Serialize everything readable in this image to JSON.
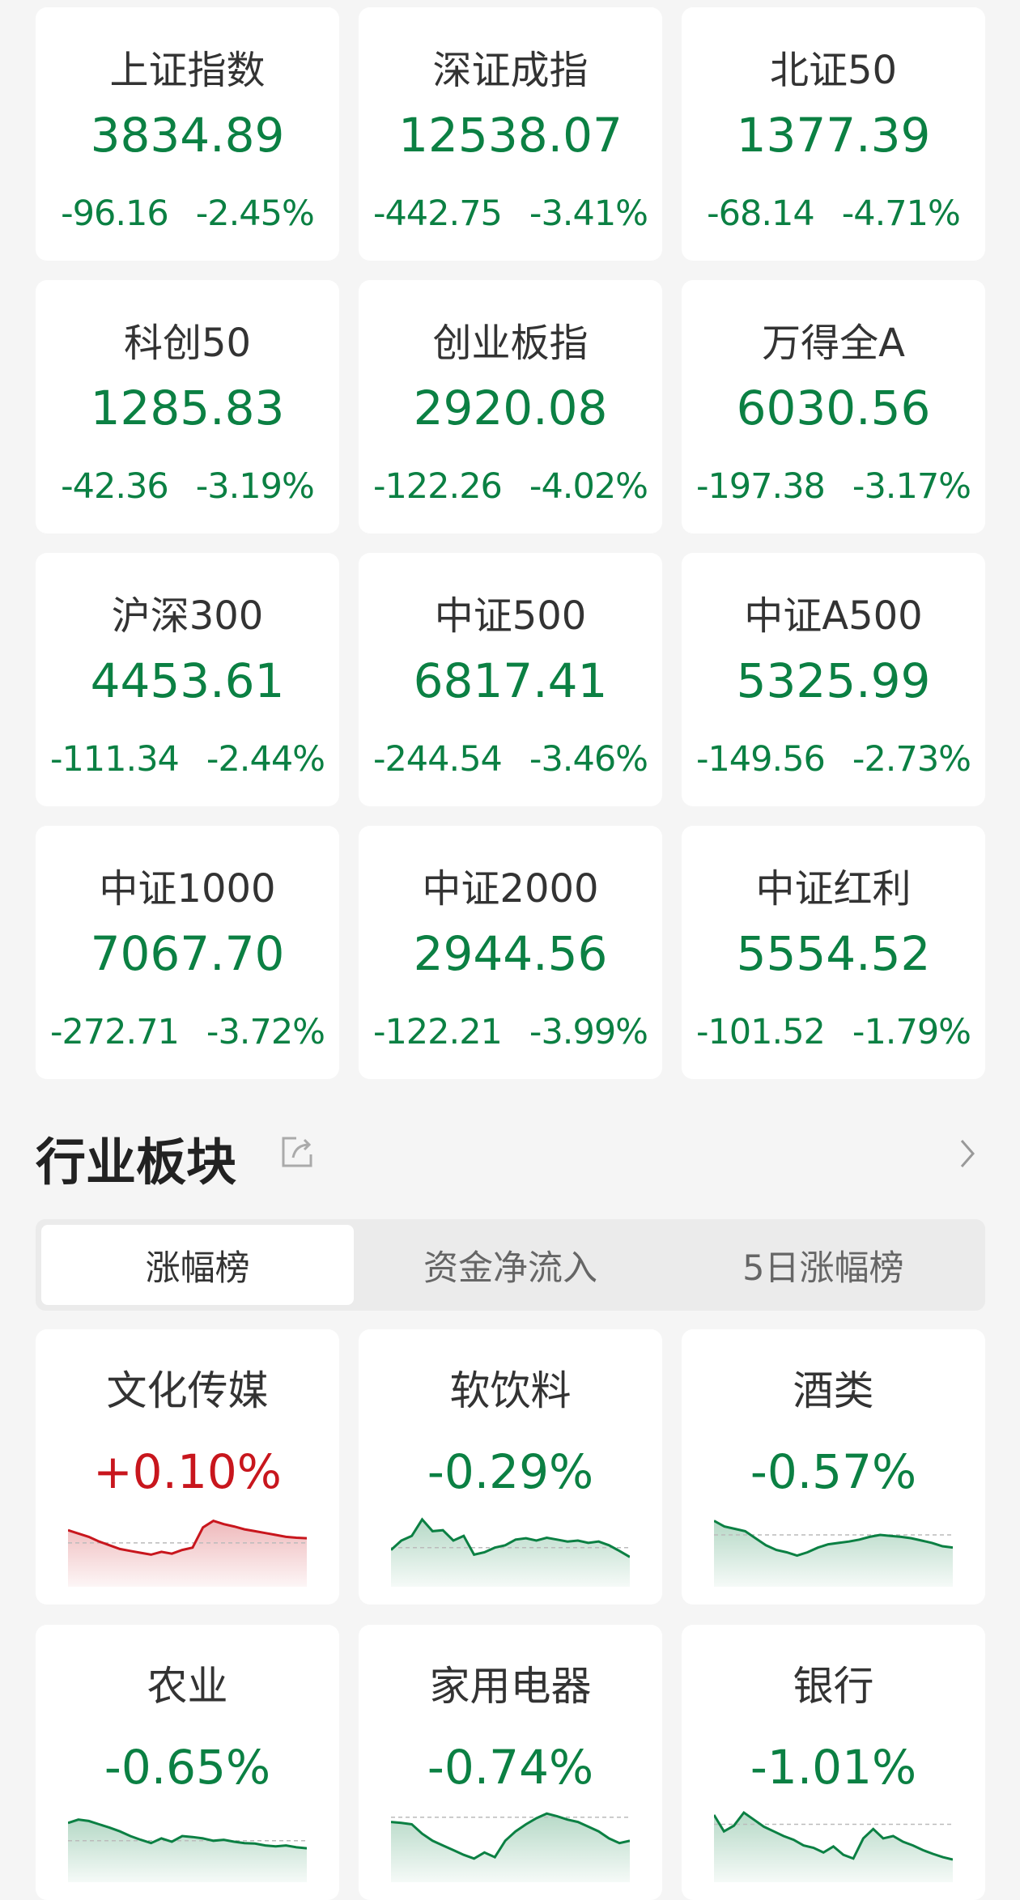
{
  "indices": [
    {
      "name": "上证指数",
      "value": "3834.89",
      "change": "-96.16",
      "pct": "-2.45%"
    },
    {
      "name": "深证成指",
      "value": "12538.07",
      "change": "-442.75",
      "pct": "-3.41%"
    },
    {
      "name": "北证50",
      "value": "1377.39",
      "change": "-68.14",
      "pct": "-4.71%"
    },
    {
      "name": "科创50",
      "value": "1285.83",
      "change": "-42.36",
      "pct": "-3.19%"
    },
    {
      "name": "创业板指",
      "value": "2920.08",
      "change": "-122.26",
      "pct": "-4.02%"
    },
    {
      "name": "万得全A",
      "value": "6030.56",
      "change": "-197.38",
      "pct": "-3.17%"
    },
    {
      "name": "沪深300",
      "value": "4453.61",
      "change": "-111.34",
      "pct": "-2.44%"
    },
    {
      "name": "中证500",
      "value": "6817.41",
      "change": "-244.54",
      "pct": "-3.46%"
    },
    {
      "name": "中证A500",
      "value": "5325.99",
      "change": "-149.56",
      "pct": "-2.73%"
    },
    {
      "name": "中证1000",
      "value": "7067.70",
      "change": "-272.71",
      "pct": "-3.72%"
    },
    {
      "name": "中证2000",
      "value": "2944.56",
      "change": "-122.21",
      "pct": "-3.99%"
    },
    {
      "name": "中证红利",
      "value": "5554.52",
      "change": "-101.52",
      "pct": "-1.79%"
    }
  ],
  "section": {
    "title": "行业板块",
    "share_icon": "share-icon",
    "more_icon": "chevron-right-icon",
    "tabs": [
      {
        "label": "涨幅榜",
        "active": true
      },
      {
        "label": "资金净流入",
        "active": false
      },
      {
        "label": "5日涨幅榜",
        "active": false
      }
    ]
  },
  "colors": {
    "down": "#0b8043",
    "up": "#c8161d"
  },
  "sectors": [
    {
      "name": "文化传媒",
      "pct": "+0.10%",
      "dir": "up",
      "baseline": 45,
      "trend": [
        72,
        65,
        58,
        48,
        40,
        32,
        28,
        24,
        20,
        26,
        22,
        30,
        35,
        78,
        92,
        85,
        80,
        74,
        70,
        66,
        62,
        58,
        56,
        55
      ]
    },
    {
      "name": "软饮料",
      "pct": "-0.29%",
      "dir": "down",
      "baseline": 35,
      "trend": [
        30,
        50,
        60,
        95,
        70,
        72,
        50,
        60,
        20,
        25,
        35,
        40,
        52,
        55,
        50,
        56,
        52,
        48,
        50,
        45,
        48,
        40,
        28,
        15
      ]
    },
    {
      "name": "酒类",
      "pct": "-0.57%",
      "dir": "down",
      "baseline": 62,
      "trend": [
        92,
        80,
        75,
        70,
        55,
        40,
        30,
        25,
        18,
        25,
        35,
        42,
        45,
        48,
        52,
        58,
        62,
        60,
        58,
        55,
        50,
        45,
        38,
        35
      ]
    },
    {
      "name": "农业",
      "pct": "-0.65%",
      "dir": "down",
      "baseline": 40,
      "trend": [
        78,
        85,
        82,
        75,
        68,
        60,
        50,
        42,
        35,
        45,
        38,
        50,
        48,
        45,
        40,
        42,
        38,
        35,
        34,
        30,
        28,
        30,
        26,
        24
      ]
    },
    {
      "name": "家用电器",
      "pct": "-0.74%",
      "dir": "down",
      "baseline": 90,
      "trend": [
        80,
        78,
        75,
        55,
        40,
        30,
        20,
        10,
        2,
        15,
        5,
        40,
        60,
        75,
        88,
        98,
        92,
        85,
        80,
        70,
        60,
        45,
        35,
        40
      ]
    },
    {
      "name": "银行",
      "pct": "-1.01%",
      "dir": "down",
      "baseline": 75,
      "trend": [
        95,
        60,
        72,
        100,
        85,
        70,
        60,
        50,
        42,
        30,
        25,
        15,
        28,
        10,
        2,
        45,
        65,
        45,
        50,
        38,
        30,
        20,
        12,
        5,
        0
      ]
    }
  ]
}
